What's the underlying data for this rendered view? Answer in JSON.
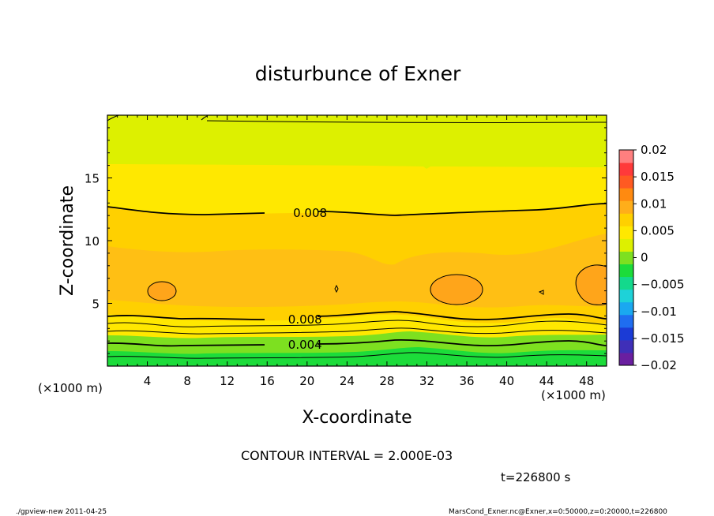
{
  "chart_data": {
    "type": "heatmap",
    "title": "disturbunce of Exner",
    "xlabel": "X-coordinate",
    "ylabel": "Z-coordinate",
    "x_unit": "(×1000 m)",
    "x_unit_right": "(×1000 m)",
    "xlim": [
      0,
      50
    ],
    "ylim": [
      0,
      20
    ],
    "x_ticks": [
      "4",
      "8",
      "12",
      "16",
      "20",
      "24",
      "28",
      "32",
      "36",
      "40",
      "44",
      "48"
    ],
    "y_ticks": [
      "5",
      "10",
      "15"
    ],
    "grid": false,
    "contour_interval_text": "CONTOUR INTERVAL = 2.000E-03",
    "time_text": "t=226800 s",
    "colorbar": {
      "range": [
        -0.02,
        0.02
      ],
      "step": 0.0025,
      "labels": [
        "0.02",
        "0.015",
        "0.01",
        "0.005",
        "0",
        "−0.005",
        "−0.01",
        "−0.015",
        "−0.02"
      ],
      "colors": [
        "#6a1fa0",
        "#3f2fb8",
        "#1b3bd6",
        "#1f6df0",
        "#1aa8f0",
        "#1ed2d8",
        "#13d98c",
        "#1cdc3a",
        "#7de020",
        "#ddf000",
        "#ffe800",
        "#ffd000",
        "#ffae1a",
        "#ff8a10",
        "#ff5a22",
        "#ff3a3a",
        "#ff7f7f"
      ]
    },
    "contour_labels": [
      {
        "x": 20.3,
        "z": 12.2,
        "text": "0.008"
      },
      {
        "x": 19.8,
        "z": 3.7,
        "text": "0.008"
      },
      {
        "x": 19.8,
        "z": 1.7,
        "text": "0.004"
      }
    ],
    "vertical_profile": [
      {
        "z": 0.0,
        "value": 0.0
      },
      {
        "z": 0.8,
        "value": 0.002
      },
      {
        "z": 1.8,
        "value": 0.004
      },
      {
        "z": 2.7,
        "value": 0.006
      },
      {
        "z": 3.9,
        "value": 0.008
      },
      {
        "z": 5.5,
        "value": 0.0095
      },
      {
        "z": 7.0,
        "value": 0.0098
      },
      {
        "z": 9.0,
        "value": 0.0094
      },
      {
        "z": 12.2,
        "value": 0.008
      },
      {
        "z": 15.9,
        "value": 0.0065
      },
      {
        "z": 20.0,
        "value": 0.004
      }
    ],
    "local_maxima": [
      {
        "x": 6.5,
        "z": 6.0,
        "value": 0.01
      },
      {
        "x": 34.0,
        "z": 6.0,
        "value": 0.01
      },
      {
        "x": 49.0,
        "z": 6.3,
        "value": 0.01
      }
    ]
  },
  "footer": {
    "left": "./gpview-new 2011-04-25",
    "right": "MarsCond_Exner.nc@Exner,x=0:50000,z=0:20000,t=226800"
  }
}
